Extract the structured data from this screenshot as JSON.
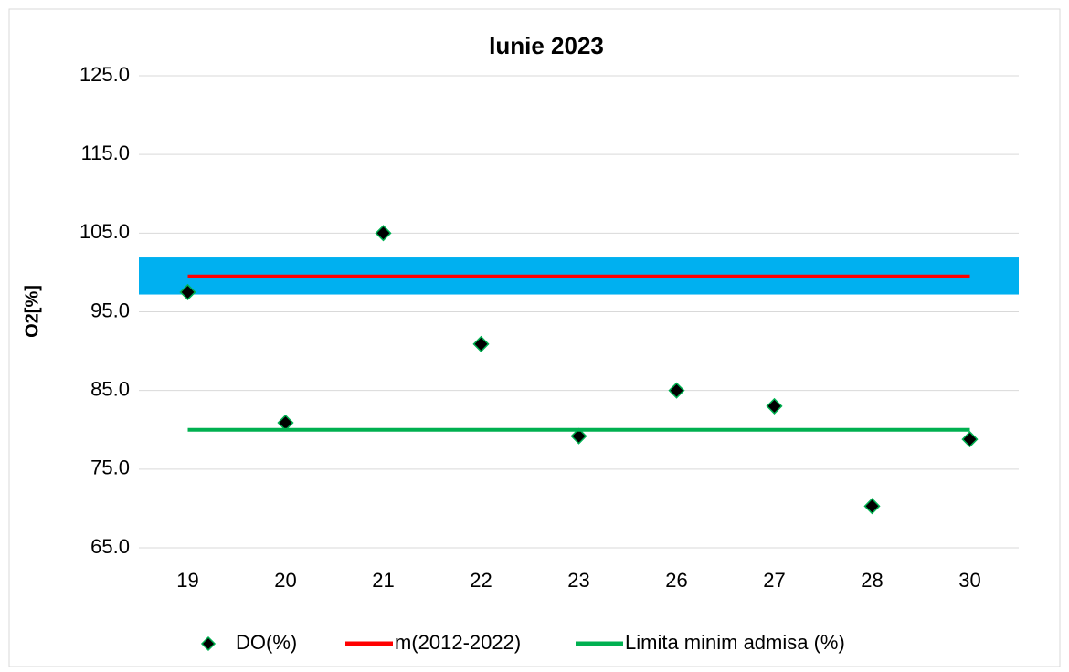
{
  "chart_data": {
    "type": "line",
    "title": "Iunie  2023",
    "y_label": "O2[%]",
    "categories": [
      "19",
      "20",
      "21",
      "22",
      "23",
      "26",
      "27",
      "28",
      "30"
    ],
    "ylim": [
      65,
      125
    ],
    "yticks": [
      {
        "value": 65,
        "label": "65.0"
      },
      {
        "value": 75,
        "label": "75.0"
      },
      {
        "value": 85,
        "label": "85.0"
      },
      {
        "value": 95,
        "label": "95.0"
      },
      {
        "value": 105,
        "label": "105.0"
      },
      {
        "value": 115,
        "label": "115.0"
      },
      {
        "value": 125,
        "label": "125.0"
      }
    ],
    "grid": true,
    "band": {
      "low": 97.2,
      "high": 101.9,
      "color": "#00b0f0"
    },
    "legend": "bottom",
    "series": [
      {
        "name": "DO(%)",
        "color": "#000000",
        "edge": "#00b050",
        "marker": "diamond",
        "line": false,
        "values": [
          97.5,
          80.9,
          105.0,
          90.9,
          79.2,
          85.0,
          83.0,
          70.3,
          78.8
        ]
      },
      {
        "name": "m(2012-2022)",
        "color": "#ff0000",
        "marker": null,
        "line": true,
        "values": [
          99.5,
          99.5,
          99.5,
          99.5,
          99.5,
          99.5,
          99.5,
          99.5,
          99.5
        ]
      },
      {
        "name": "Limita minim admisa (%)",
        "color": "#00b050",
        "marker": null,
        "line": true,
        "values": [
          80,
          80,
          80,
          80,
          80,
          80,
          80,
          80,
          80
        ]
      }
    ]
  }
}
